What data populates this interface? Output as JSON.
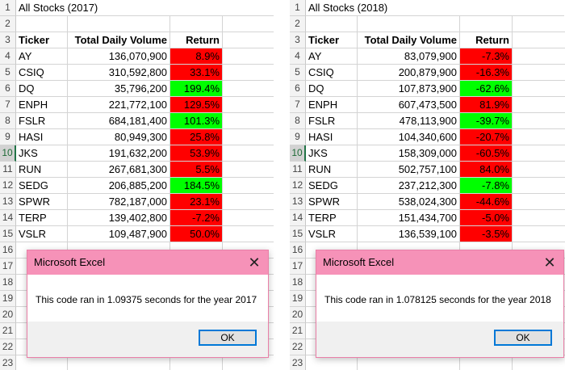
{
  "left_sheet": {
    "title": "All Stocks (2017)",
    "headers": {
      "ticker": "Ticker",
      "volume": "Total Daily Volume",
      "return": "Return"
    },
    "rows": [
      {
        "ticker": "AY",
        "volume": "136,070,900",
        "return": "8.9%",
        "color": "red"
      },
      {
        "ticker": "CSIQ",
        "volume": "310,592,800",
        "return": "33.1%",
        "color": "red"
      },
      {
        "ticker": "DQ",
        "volume": "35,796,200",
        "return": "199.4%",
        "color": "green"
      },
      {
        "ticker": "ENPH",
        "volume": "221,772,100",
        "return": "129.5%",
        "color": "red"
      },
      {
        "ticker": "FSLR",
        "volume": "684,181,400",
        "return": "101.3%",
        "color": "green"
      },
      {
        "ticker": "HASI",
        "volume": "80,949,300",
        "return": "25.8%",
        "color": "red"
      },
      {
        "ticker": "JKS",
        "volume": "191,632,200",
        "return": "53.9%",
        "color": "red"
      },
      {
        "ticker": "RUN",
        "volume": "267,681,300",
        "return": "5.5%",
        "color": "red"
      },
      {
        "ticker": "SEDG",
        "volume": "206,885,200",
        "return": "184.5%",
        "color": "green"
      },
      {
        "ticker": "SPWR",
        "volume": "782,187,000",
        "return": "23.1%",
        "color": "red"
      },
      {
        "ticker": "TERP",
        "volume": "139,402,800",
        "return": "-7.2%",
        "color": "red"
      },
      {
        "ticker": "VSLR",
        "volume": "109,487,900",
        "return": "50.0%",
        "color": "red"
      }
    ]
  },
  "right_sheet": {
    "title": "All Stocks (2018)",
    "headers": {
      "ticker": "Ticker",
      "volume": "Total Daily Volume",
      "return": "Return"
    },
    "rows": [
      {
        "ticker": "AY",
        "volume": "83,079,900",
        "return": "-7.3%",
        "color": "red"
      },
      {
        "ticker": "CSIQ",
        "volume": "200,879,900",
        "return": "-16.3%",
        "color": "red"
      },
      {
        "ticker": "DQ",
        "volume": "107,873,900",
        "return": "-62.6%",
        "color": "green"
      },
      {
        "ticker": "ENPH",
        "volume": "607,473,500",
        "return": "81.9%",
        "color": "red"
      },
      {
        "ticker": "FSLR",
        "volume": "478,113,900",
        "return": "-39.7%",
        "color": "green"
      },
      {
        "ticker": "HASI",
        "volume": "104,340,600",
        "return": "-20.7%",
        "color": "red"
      },
      {
        "ticker": "JKS",
        "volume": "158,309,000",
        "return": "-60.5%",
        "color": "red"
      },
      {
        "ticker": "RUN",
        "volume": "502,757,100",
        "return": "84.0%",
        "color": "red"
      },
      {
        "ticker": "SEDG",
        "volume": "237,212,300",
        "return": "-7.8%",
        "color": "green"
      },
      {
        "ticker": "SPWR",
        "volume": "538,024,300",
        "return": "-44.6%",
        "color": "red"
      },
      {
        "ticker": "TERP",
        "volume": "151,434,700",
        "return": "-5.0%",
        "color": "red"
      },
      {
        "ticker": "VSLR",
        "volume": "136,539,100",
        "return": "-3.5%",
        "color": "red"
      }
    ]
  },
  "row_numbers": [
    "1",
    "2",
    "3",
    "4",
    "5",
    "6",
    "7",
    "8",
    "9",
    "10",
    "11",
    "12",
    "13",
    "14",
    "15",
    "16",
    "17",
    "18",
    "19",
    "20",
    "21",
    "22",
    "23"
  ],
  "selected_row": "10",
  "dialog_left": {
    "title": "Microsoft Excel",
    "message": "This code ran in 1.09375 seconds for the year 2017",
    "ok_label": "OK"
  },
  "dialog_right": {
    "title": "Microsoft Excel",
    "message": "This code ran in 1.078125 seconds for the year 2018",
    "ok_label": "OK"
  },
  "colors": {
    "red": "#ff0000",
    "green": "#00ff00",
    "dialog_title": "#f692b8"
  }
}
